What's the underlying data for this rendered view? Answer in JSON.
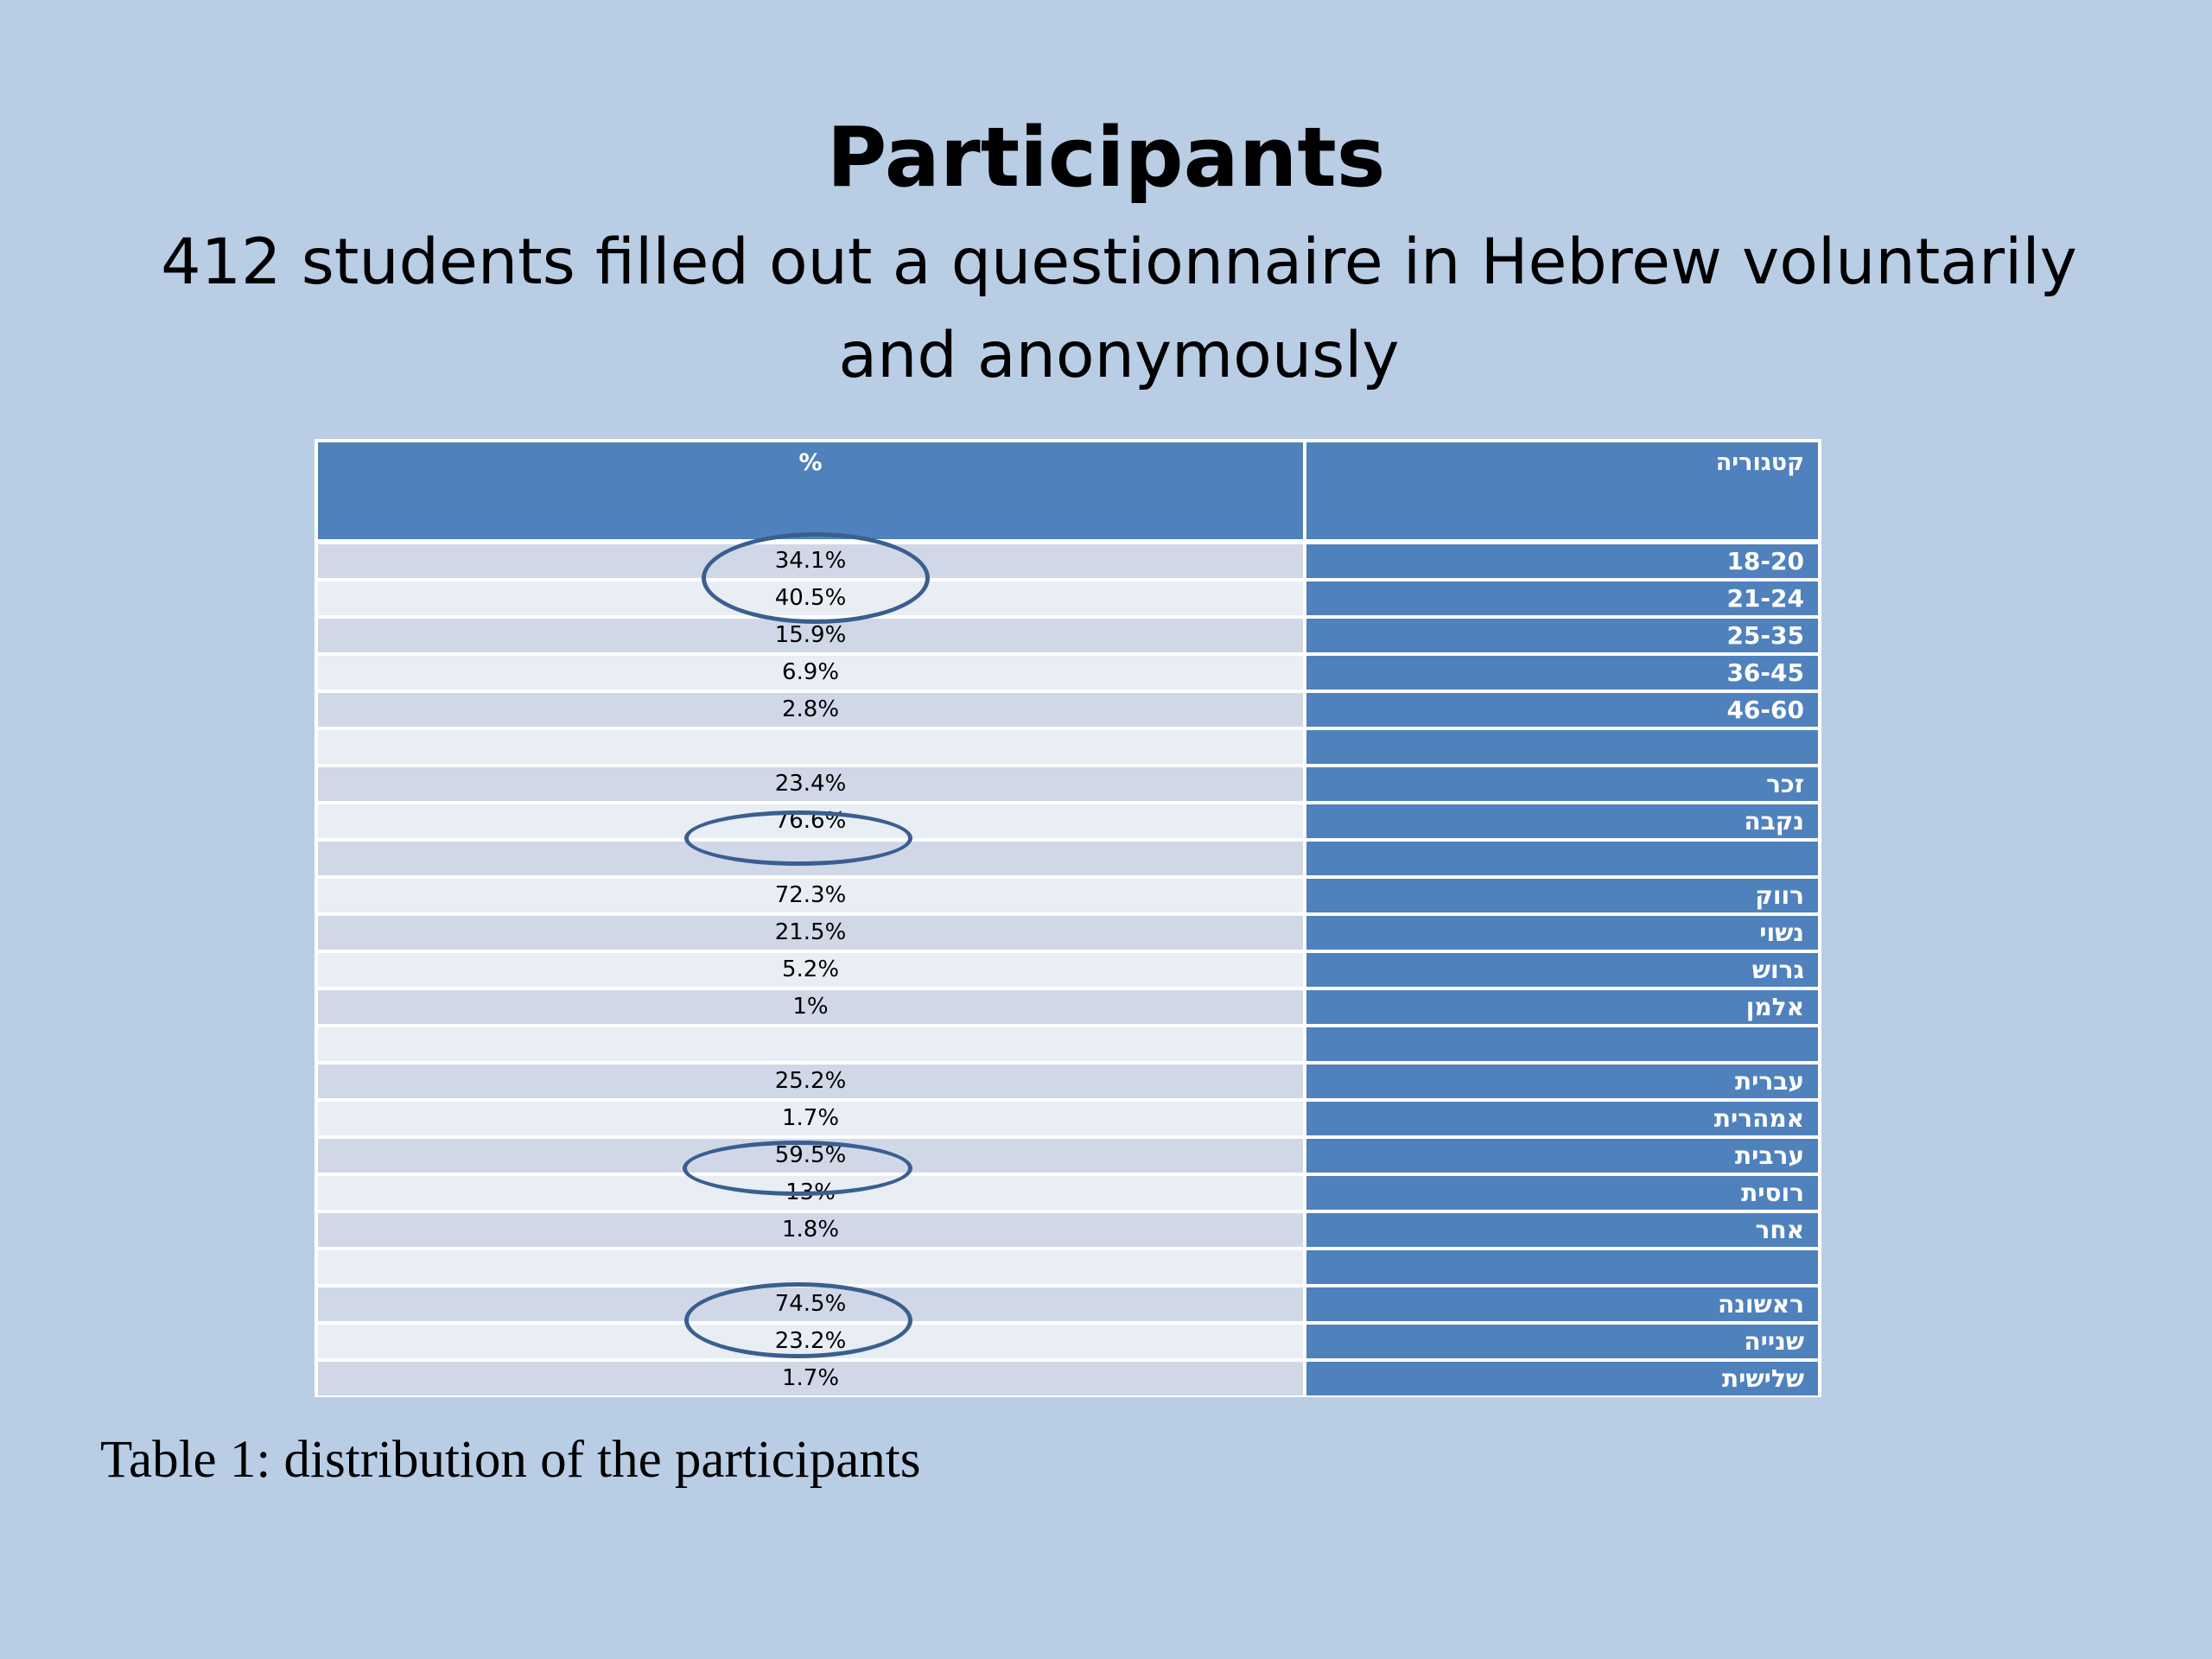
{
  "title": "Participants",
  "subtitle": "412 students filled out a questionnaire in Hebrew voluntarily and anonymously",
  "table": {
    "header": {
      "value_col": "%",
      "category_col": "קטגוריה"
    },
    "rows": [
      {
        "category": "18-20",
        "value": "34.1%"
      },
      {
        "category": "21-24",
        "value": "40.5%"
      },
      {
        "category": "25-35",
        "value": "15.9%"
      },
      {
        "category": "36-45",
        "value": "6.9%"
      },
      {
        "category": "46-60",
        "value": "2.8%"
      },
      {
        "category": "",
        "value": ""
      },
      {
        "category": "זכר",
        "value": "23.4%"
      },
      {
        "category": "נקבה",
        "value": "76.6%"
      },
      {
        "category": "",
        "value": ""
      },
      {
        "category": "רווק",
        "value": "72.3%"
      },
      {
        "category": "נשוי",
        "value": "21.5%"
      },
      {
        "category": "גרוש",
        "value": "5.2%"
      },
      {
        "category": "אלמן",
        "value": "1%"
      },
      {
        "category": "",
        "value": ""
      },
      {
        "category": "עברית",
        "value": "25.2%"
      },
      {
        "category": "אמהרית",
        "value": "1.7%"
      },
      {
        "category": "ערבית",
        "value": "59.5%"
      },
      {
        "category": "רוסית",
        "value": "13%"
      },
      {
        "category": "אחר",
        "value": "1.8%"
      },
      {
        "category": "",
        "value": ""
      },
      {
        "category": "ראשונה",
        "value": "74.5%"
      },
      {
        "category": "שנייה",
        "value": "23.2%"
      },
      {
        "category": "שלישית",
        "value": "1.7%"
      }
    ]
  },
  "caption": "Table 1:  distribution of the participants"
}
